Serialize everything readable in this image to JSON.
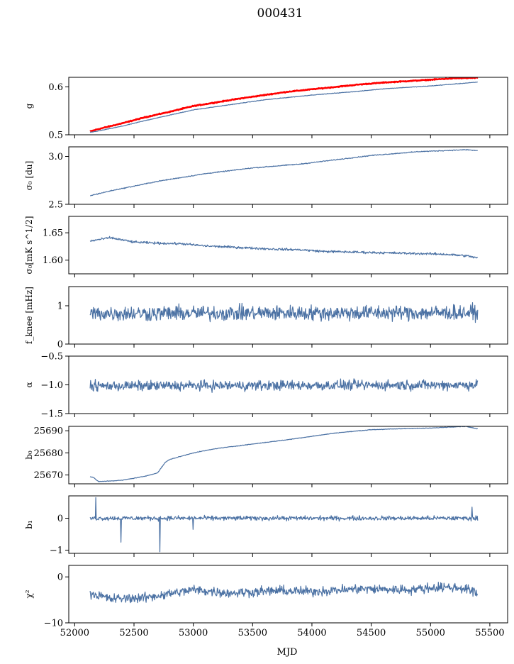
{
  "chart_data": {
    "title": "000431",
    "type": "line",
    "xlabel": "MJD",
    "xlim": [
      51950,
      55650
    ],
    "xticks": [
      52000,
      52500,
      53000,
      53500,
      54000,
      54500,
      55000,
      55500
    ],
    "series_color": "#4c72a4",
    "highlight_color": "#ff0000",
    "panels": [
      {
        "id": "g",
        "ylabel": "g",
        "ylim": [
          0.5,
          0.62
        ],
        "yticks": [
          0.5,
          0.6
        ],
        "yticklabels": [
          "0.5",
          "0.6"
        ],
        "series": [
          {
            "color": "#ff0000",
            "width": 2.5,
            "noise": 0.0008,
            "x": [
              52130,
              52200,
              52400,
              52600,
              52800,
              53000,
              53200,
              53400,
              53600,
              53800,
              54000,
              54200,
              54400,
              54600,
              54800,
              55000,
              55200,
              55400
            ],
            "y": [
              0.507,
              0.512,
              0.524,
              0.537,
              0.548,
              0.56,
              0.568,
              0.576,
              0.583,
              0.59,
              0.595,
              0.6,
              0.605,
              0.609,
              0.612,
              0.615,
              0.618,
              0.619
            ]
          },
          {
            "color": "#4c72a4",
            "width": 1.2,
            "noise": 0.0005,
            "x": [
              52130,
              52200,
              52400,
              52600,
              52800,
              53000,
              53200,
              53400,
              53600,
              53800,
              54000,
              54200,
              54400,
              54600,
              54800,
              55000,
              55200,
              55400
            ],
            "y": [
              0.505,
              0.508,
              0.518,
              0.53,
              0.541,
              0.552,
              0.559,
              0.566,
              0.573,
              0.578,
              0.583,
              0.587,
              0.591,
              0.596,
              0.599,
              0.602,
              0.606,
              0.61
            ]
          }
        ]
      },
      {
        "id": "sigma0-du",
        "ylabel": "σ₀ [du]",
        "ylim": [
          2.5,
          3.1
        ],
        "yticks": [
          2.5,
          3.0
        ],
        "yticklabels": [
          "2.5",
          "3.0"
        ],
        "series": [
          {
            "color": "#4c72a4",
            "width": 1.2,
            "noise": 0.004,
            "x": [
              52130,
              52300,
              52500,
              52700,
              52900,
              53100,
              53300,
              53500,
              53700,
              53900,
              54100,
              54300,
              54500,
              54700,
              54900,
              55100,
              55300,
              55400
            ],
            "y": [
              2.59,
              2.64,
              2.69,
              2.74,
              2.78,
              2.82,
              2.85,
              2.88,
              2.9,
              2.92,
              2.95,
              2.98,
              3.01,
              3.03,
              3.05,
              3.06,
              3.07,
              3.06
            ]
          }
        ]
      },
      {
        "id": "sigma0-mk",
        "ylabel": "σ₀[mK s^1/2]",
        "ylim": [
          1.575,
          1.68
        ],
        "yticks": [
          1.6,
          1.65
        ],
        "yticklabels": [
          "1.60",
          "1.65"
        ],
        "series": [
          {
            "color": "#4c72a4",
            "width": 1.2,
            "noise": 0.0018,
            "x": [
              52130,
              52300,
              52500,
              52700,
              52900,
              53100,
              53300,
              53500,
              53700,
              53900,
              54100,
              54300,
              54500,
              54700,
              54900,
              55100,
              55300,
              55400
            ],
            "y": [
              1.635,
              1.641,
              1.633,
              1.631,
              1.63,
              1.626,
              1.624,
              1.622,
              1.62,
              1.619,
              1.616,
              1.615,
              1.614,
              1.613,
              1.612,
              1.611,
              1.608,
              1.604
            ]
          }
        ]
      },
      {
        "id": "fknee",
        "ylabel": "f_knee [mHz]",
        "ylim": [
          0,
          1.5
        ],
        "yticks": [
          0,
          1
        ],
        "yticklabels": [
          "0",
          "1"
        ],
        "series": [
          {
            "color": "#4c72a4",
            "width": 1.2,
            "noise": 0.17,
            "x": [
              52130,
              55400
            ],
            "y": [
              0.8,
              0.82
            ]
          }
        ]
      },
      {
        "id": "alpha",
        "ylabel": "α",
        "ylim": [
          -1.5,
          -0.5
        ],
        "yticks": [
          -1.5,
          -1.0,
          -0.5
        ],
        "yticklabels": [
          "−1.5",
          "−1.0",
          "−0.5"
        ],
        "series": [
          {
            "color": "#4c72a4",
            "width": 1.2,
            "noise": 0.075,
            "x": [
              52130,
              55400
            ],
            "y": [
              -1.02,
              -1.0
            ]
          }
        ]
      },
      {
        "id": "b0",
        "ylabel": "b₀",
        "ylim": [
          25666,
          25692
        ],
        "yticks": [
          25670,
          25680,
          25690
        ],
        "yticklabels": [
          "25670",
          "25680",
          "25690"
        ],
        "series": [
          {
            "color": "#4c72a4",
            "width": 1.2,
            "noise": 0.12,
            "x": [
              52130,
              52160,
              52200,
              52400,
              52600,
              52700,
              52720,
              52760,
              52800,
              53000,
              53200,
              53500,
              53800,
              54000,
              54200,
              54500,
              54800,
              55000,
              55200,
              55300,
              55400
            ],
            "y": [
              25669.3,
              25668.8,
              25667.0,
              25667.6,
              25669.5,
              25671.0,
              25672.5,
              25675.5,
              25677.0,
              25680.0,
              25682.0,
              25684.0,
              25686.0,
              25687.5,
              25689.0,
              25690.5,
              25691.0,
              25691.2,
              25691.8,
              25692.0,
              25690.8
            ]
          }
        ]
      },
      {
        "id": "b1",
        "ylabel": "b₁",
        "ylim": [
          -1.1,
          0.7
        ],
        "yticks": [
          -1,
          0
        ],
        "yticklabels": [
          "−1",
          "0"
        ],
        "series": [
          {
            "color": "#4c72a4",
            "width": 1.2,
            "noise": 0.06,
            "x": [
              52130,
              55400
            ],
            "y": [
              0.0,
              0.0
            ],
            "spikes": [
              [
                52180,
                0.65
              ],
              [
                52390,
                -0.75
              ],
              [
                52720,
                -1.05
              ],
              [
                53000,
                -0.35
              ],
              [
                55350,
                0.35
              ]
            ]
          }
        ]
      },
      {
        "id": "chi2",
        "ylabel": "χ²",
        "ylim": [
          -10,
          2.5
        ],
        "yticks": [
          -10,
          0
        ],
        "yticklabels": [
          "−10",
          "0"
        ],
        "series": [
          {
            "color": "#4c72a4",
            "width": 1.2,
            "noise": 0.9,
            "x": [
              52130,
              52300,
              52600,
              53000,
              53300,
              53700,
              54000,
              54400,
              54800,
              55100,
              55300,
              55400
            ],
            "y": [
              -3.5,
              -4.8,
              -4.5,
              -2.8,
              -3.5,
              -3.0,
              -3.2,
              -2.6,
              -2.8,
              -2.2,
              -2.5,
              -3.8
            ]
          }
        ]
      }
    ]
  }
}
